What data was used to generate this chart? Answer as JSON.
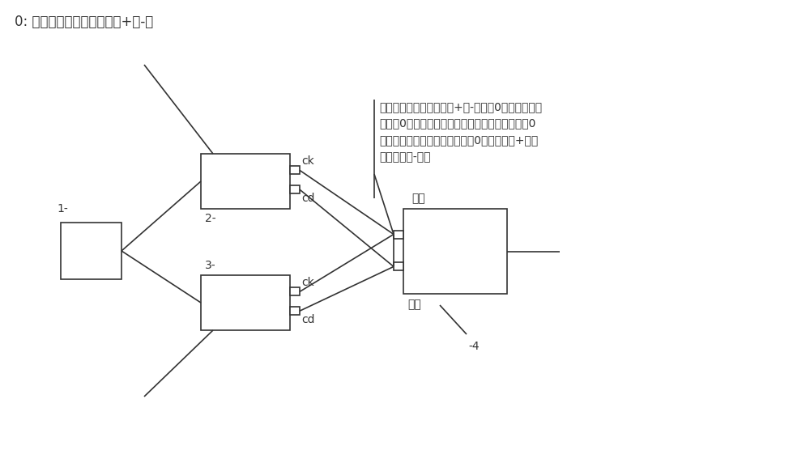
{
  "bg_color": "#ffffff",
  "line_color": "#333333",
  "title_text": "0: 交流单相电线或直流电线+或-级",
  "annotation_text": "交流单相电线或直流电线+或-级，与0标识输入正好\n相反（0标识接单相火线的话，此处接零线，假如0\n标识接零线的话，此处接火线，0标识接直流+级的\n话，此处接-级）",
  "label_1": "1-",
  "label_2": "2-",
  "label_3": "3-",
  "label_4": "-4",
  "label_ck_upper": "ck",
  "label_cd_upper": "cd",
  "label_ck_lower": "ck",
  "label_cd_lower": "cd",
  "label_zhengzhuan": "正转",
  "label_fanzhuan": "反转",
  "font_size_title": 12,
  "font_size_label": 10,
  "font_size_annotation": 10,
  "fig_w": 10.0,
  "fig_h": 5.56,
  "dpi": 100
}
